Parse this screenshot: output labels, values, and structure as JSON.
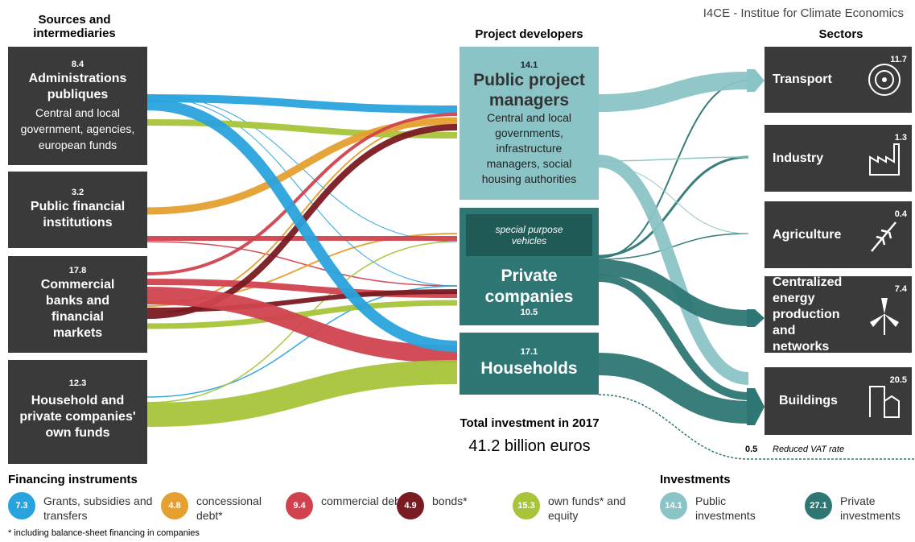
{
  "source": "I4CE - Institue for Climate Economics",
  "headers": {
    "sources": "Sources and intermediaries",
    "developers": "Project developers",
    "sectors": "Sectors"
  },
  "sources": [
    {
      "value": "8.4",
      "title": "Administrations publiques",
      "subtitle": "Central and local government, agencies, european funds"
    },
    {
      "value": "3.2",
      "title": "Public financial institutions"
    },
    {
      "value": "17.8",
      "title": "Commercial banks and financial markets"
    },
    {
      "value": "12.3",
      "title": "Household and private companies' own funds"
    }
  ],
  "developers": [
    {
      "value": "14.1",
      "title": "Public project managers",
      "subtitle": "Central and local governments, infrastructure managers, social housing authorities"
    },
    {
      "value": "10.5",
      "title": "Private companies",
      "note": "special purpose vehicles"
    },
    {
      "value": "17.1",
      "title": "Households"
    }
  ],
  "sectors": [
    {
      "value": "11.7",
      "title": "Transport"
    },
    {
      "value": "1.3",
      "title": "Industry"
    },
    {
      "value": "0.4",
      "title": "Agriculture"
    },
    {
      "value": "7.4",
      "title": "Centralized energy production and networks"
    },
    {
      "value": "20.5",
      "title": "Buildings"
    }
  ],
  "total": {
    "label": "Total investment in 2017",
    "value": "41.2 billion euros"
  },
  "vat": {
    "value": "0.5",
    "label": "Reduced VAT rate"
  },
  "financing": {
    "title": "Financing instruments",
    "items": [
      {
        "value": "7.3",
        "label": "Grants, subsidies and transfers",
        "color": "#29a3dd"
      },
      {
        "value": "4.8",
        "label": "concessional debt*",
        "color": "#e5a030"
      },
      {
        "value": "9.4",
        "label": "commercial debt*",
        "color": "#d0434e"
      },
      {
        "value": "4.9",
        "label": "bonds*",
        "color": "#7a1a22"
      },
      {
        "value": "15.3",
        "label": "own funds* and equity",
        "color": "#a8c43a"
      }
    ]
  },
  "investments": {
    "title": "Investments",
    "items": [
      {
        "value": "14.1",
        "label": "Public investments",
        "color": "#8bc4c6"
      },
      {
        "value": "27.1",
        "label": "Private investments",
        "color": "#2e7774"
      }
    ]
  },
  "footnote": "* including balance-sheet financing in companies"
}
